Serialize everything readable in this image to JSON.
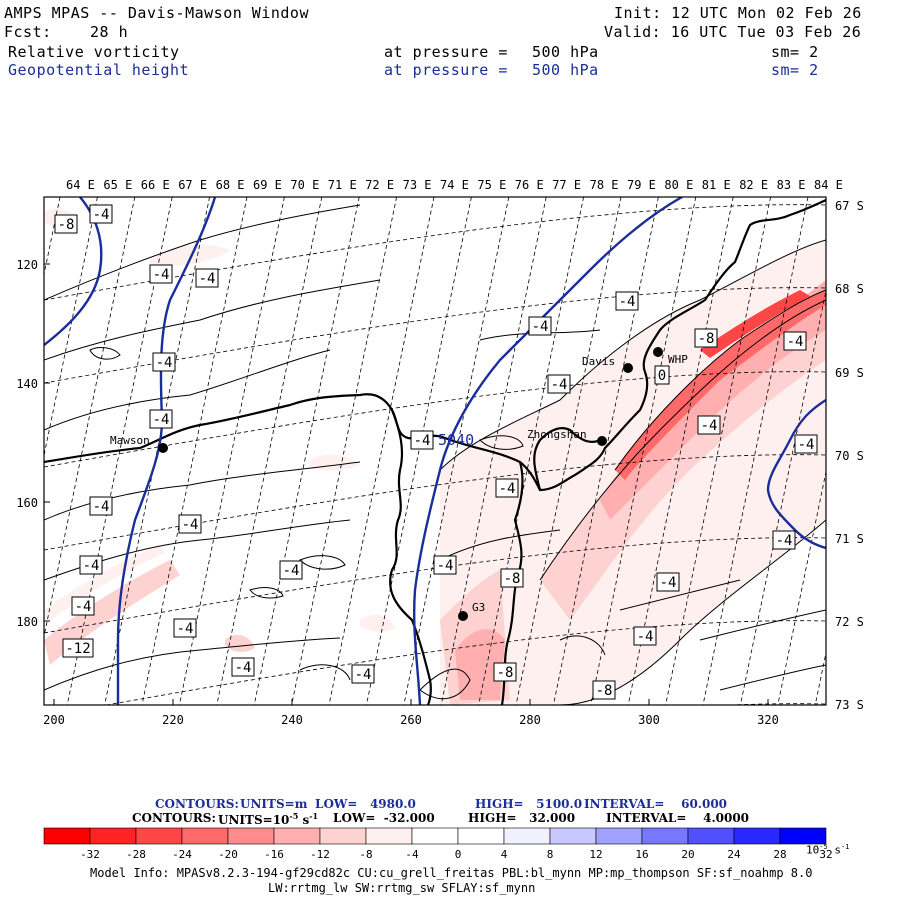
{
  "header": {
    "title": "AMPS MPAS -- Davis-Mawson Window",
    "init": "Init: 12 UTC Mon 02 Feb 26",
    "fcst_label": "Fcst:",
    "fcst_value": "28 h",
    "valid": "Valid: 16 UTC Tue 03 Feb 26",
    "fields": [
      {
        "name": "Relative vorticity",
        "pressure_label": "at pressure =",
        "pressure_value": "500 hPa",
        "sm": "sm= 2",
        "color": "#000000"
      },
      {
        "name": "Geopotential height",
        "pressure_label": "at pressure =",
        "pressure_value": "500 hPa",
        "sm": "sm= 2",
        "color": "#1a2d9a"
      }
    ]
  },
  "map": {
    "top_lon_labels": [
      "64 E",
      "65 E",
      "66 E",
      "67 E",
      "68 E",
      "69 E",
      "70 E",
      "71 E",
      "72 E",
      "73 E",
      "74 E",
      "75 E",
      "76 E",
      "77 E",
      "78 E",
      "79 E",
      "80 E",
      "81 E",
      "82 E",
      "83 E",
      "84 E"
    ],
    "right_lat_labels": [
      "67 S",
      "68 S",
      "69 S",
      "70 S",
      "71 S",
      "72 S",
      "73 S"
    ],
    "left_grid_labels": [
      "120",
      "140",
      "160",
      "180"
    ],
    "bottom_grid_labels": [
      "200",
      "220",
      "240",
      "260",
      "280",
      "300",
      "320"
    ],
    "stations": [
      "Mawson",
      "Davis",
      "WHP",
      "Zhongshan",
      "G3"
    ],
    "height_contour_label": "5040",
    "contour_labels": [
      "-8",
      "-4",
      "-4",
      "-4",
      "-4",
      "-4",
      "-4",
      "-4",
      "-4",
      "-4",
      "-4",
      "-4",
      "-4",
      "-4",
      "-4",
      "-4",
      "-4",
      "-4",
      "-4",
      "-4",
      "-4",
      "-4",
      "-4",
      "-4",
      "-4",
      "-8",
      "-8",
      "-12",
      "-8",
      "-8",
      "-4",
      "0"
    ]
  },
  "legend": {
    "line1": {
      "label": "CONTOURS:",
      "units": "UNITS=m",
      "low": "LOW=   4980.0",
      "high": "HIGH=   5100.0",
      "interval": "INTERVAL=    60.000"
    },
    "line2": {
      "label": "CONTOURS:",
      "units_prefix": "UNITS=10",
      "units_exp": "-5",
      "units_s": " s",
      "units_sexp": "-1",
      "low": "LOW=  -32.000",
      "high": "HIGH=   32.000",
      "interval": "INTERVAL=    4.0000"
    },
    "colorbar": {
      "colors": [
        "#ff0000",
        "#ff2323",
        "#ff4646",
        "#ff6969",
        "#ff8c8c",
        "#ffafaf",
        "#ffd2d2",
        "#fff0f0",
        "#ffffff",
        "#ffffff",
        "#f0f0ff",
        "#c8c8ff",
        "#a0a0ff",
        "#7878ff",
        "#5050ff",
        "#2828ff",
        "#0000ff"
      ],
      "ticks": [
        "-32",
        "-28",
        "-24",
        "-20",
        "-16",
        "-12",
        "-8",
        "-4",
        "0",
        "4",
        "8",
        "12",
        "16",
        "20",
        "24",
        "28",
        "32"
      ],
      "unit": "10",
      "unit_exp": "-5",
      "unit_s": "s",
      "unit_sexp": "-1"
    }
  },
  "model_info": {
    "line1": "Model Info: MPASv8.2.3-194-gf29cd82c CU:cu_grell_freitas PBL:bl_mynn MP:mp_thompson SF:sf_noahmp 8.0",
    "line2": "LW:rrtmg_lw SW:rrtmg_sw SFLAY:sf_mynn"
  }
}
